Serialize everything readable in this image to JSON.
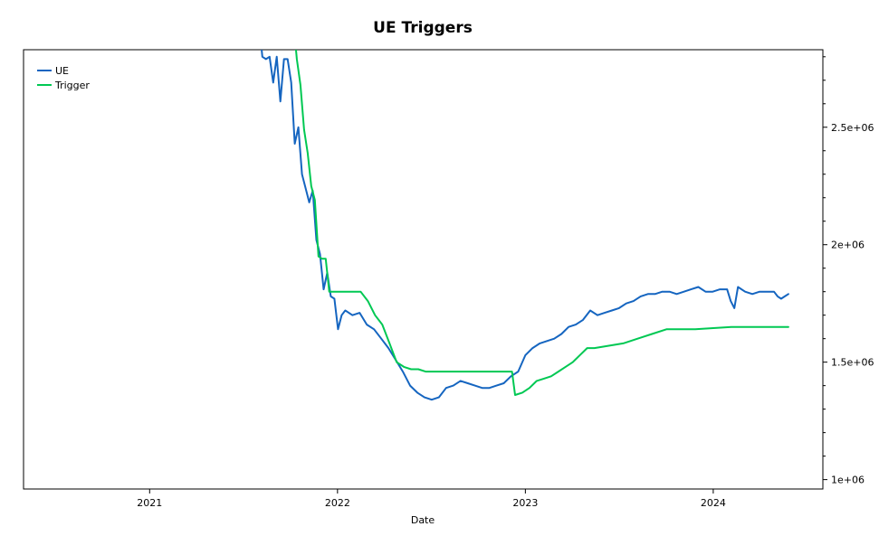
{
  "chart_data": {
    "type": "line",
    "title": "UE Triggers",
    "xlabel": "Date",
    "ylabel": "",
    "x_type": "date",
    "xlim": [
      "2020-05-01",
      "2024-08-01"
    ],
    "ylim": [
      960000,
      2830000
    ],
    "y_axis_side": "right",
    "grid": false,
    "legend_position": "top-left",
    "x_ticks": [
      {
        "value": "2021-01-01",
        "label": "2021"
      },
      {
        "value": "2022-01-01",
        "label": "2022"
      },
      {
        "value": "2023-01-01",
        "label": "2023"
      },
      {
        "value": "2024-01-01",
        "label": "2024"
      }
    ],
    "y_ticks": [
      {
        "value": 1000000,
        "label": "1e+06"
      },
      {
        "value": 1500000,
        "label": "1.5e+06"
      },
      {
        "value": 2000000,
        "label": "2e+06"
      },
      {
        "value": 2500000,
        "label": "2.5e+06"
      }
    ],
    "series": [
      {
        "name": "UE",
        "color": "#1565c0",
        "points": [
          [
            "2021-08-01",
            2960000
          ],
          [
            "2021-08-08",
            2800000
          ],
          [
            "2021-08-15",
            2790000
          ],
          [
            "2021-08-22",
            2800000
          ],
          [
            "2021-08-29",
            2690000
          ],
          [
            "2021-09-05",
            2800000
          ],
          [
            "2021-09-12",
            2610000
          ],
          [
            "2021-09-19",
            2790000
          ],
          [
            "2021-09-26",
            2790000
          ],
          [
            "2021-10-03",
            2690000
          ],
          [
            "2021-10-10",
            2430000
          ],
          [
            "2021-10-17",
            2500000
          ],
          [
            "2021-10-24",
            2300000
          ],
          [
            "2021-10-31",
            2240000
          ],
          [
            "2021-11-07",
            2180000
          ],
          [
            "2021-11-14",
            2230000
          ],
          [
            "2021-11-21",
            2020000
          ],
          [
            "2021-11-28",
            1960000
          ],
          [
            "2021-12-05",
            1810000
          ],
          [
            "2021-12-12",
            1880000
          ],
          [
            "2021-12-19",
            1780000
          ],
          [
            "2021-12-26",
            1770000
          ],
          [
            "2022-01-02",
            1640000
          ],
          [
            "2022-01-09",
            1700000
          ],
          [
            "2022-01-16",
            1720000
          ],
          [
            "2022-01-30",
            1700000
          ],
          [
            "2022-02-13",
            1710000
          ],
          [
            "2022-02-27",
            1660000
          ],
          [
            "2022-03-13",
            1640000
          ],
          [
            "2022-03-27",
            1600000
          ],
          [
            "2022-04-10",
            1560000
          ],
          [
            "2022-04-24",
            1510000
          ],
          [
            "2022-05-08",
            1460000
          ],
          [
            "2022-05-22",
            1400000
          ],
          [
            "2022-06-05",
            1370000
          ],
          [
            "2022-06-19",
            1350000
          ],
          [
            "2022-07-03",
            1340000
          ],
          [
            "2022-07-17",
            1350000
          ],
          [
            "2022-07-31",
            1390000
          ],
          [
            "2022-08-14",
            1400000
          ],
          [
            "2022-08-28",
            1420000
          ],
          [
            "2022-09-11",
            1410000
          ],
          [
            "2022-09-25",
            1400000
          ],
          [
            "2022-10-09",
            1390000
          ],
          [
            "2022-10-23",
            1390000
          ],
          [
            "2022-11-06",
            1400000
          ],
          [
            "2022-11-20",
            1410000
          ],
          [
            "2022-12-04",
            1440000
          ],
          [
            "2022-12-18",
            1460000
          ],
          [
            "2023-01-01",
            1530000
          ],
          [
            "2023-01-15",
            1560000
          ],
          [
            "2023-01-29",
            1580000
          ],
          [
            "2023-02-12",
            1590000
          ],
          [
            "2023-02-26",
            1600000
          ],
          [
            "2023-03-12",
            1620000
          ],
          [
            "2023-03-26",
            1650000
          ],
          [
            "2023-04-09",
            1660000
          ],
          [
            "2023-04-23",
            1680000
          ],
          [
            "2023-05-07",
            1720000
          ],
          [
            "2023-05-21",
            1700000
          ],
          [
            "2023-06-04",
            1710000
          ],
          [
            "2023-06-18",
            1720000
          ],
          [
            "2023-07-02",
            1730000
          ],
          [
            "2023-07-16",
            1750000
          ],
          [
            "2023-07-30",
            1760000
          ],
          [
            "2023-08-13",
            1780000
          ],
          [
            "2023-08-27",
            1790000
          ],
          [
            "2023-09-10",
            1790000
          ],
          [
            "2023-09-24",
            1800000
          ],
          [
            "2023-10-08",
            1800000
          ],
          [
            "2023-10-22",
            1790000
          ],
          [
            "2023-11-05",
            1800000
          ],
          [
            "2023-11-19",
            1810000
          ],
          [
            "2023-12-03",
            1820000
          ],
          [
            "2023-12-17",
            1800000
          ],
          [
            "2023-12-31",
            1800000
          ],
          [
            "2024-01-14",
            1810000
          ],
          [
            "2024-01-28",
            1810000
          ],
          [
            "2024-02-04",
            1760000
          ],
          [
            "2024-02-11",
            1730000
          ],
          [
            "2024-02-18",
            1820000
          ],
          [
            "2024-03-03",
            1800000
          ],
          [
            "2024-03-17",
            1790000
          ],
          [
            "2024-03-31",
            1800000
          ],
          [
            "2024-04-14",
            1800000
          ],
          [
            "2024-04-28",
            1800000
          ],
          [
            "2024-05-05",
            1780000
          ],
          [
            "2024-05-12",
            1770000
          ],
          [
            "2024-05-19",
            1780000
          ],
          [
            "2024-05-26",
            1790000
          ]
        ]
      },
      {
        "name": "Trigger",
        "color": "#00c853",
        "points": [
          [
            "2021-10-01",
            2960000
          ],
          [
            "2021-10-07",
            2960000
          ],
          [
            "2021-10-14",
            2790000
          ],
          [
            "2021-10-21",
            2680000
          ],
          [
            "2021-10-28",
            2490000
          ],
          [
            "2021-11-04",
            2390000
          ],
          [
            "2021-11-11",
            2250000
          ],
          [
            "2021-11-18",
            2190000
          ],
          [
            "2021-11-25",
            1950000
          ],
          [
            "2021-12-02",
            1940000
          ],
          [
            "2021-12-09",
            1940000
          ],
          [
            "2021-12-16",
            1800000
          ],
          [
            "2022-02-15",
            1800000
          ],
          [
            "2022-03-01",
            1760000
          ],
          [
            "2022-03-15",
            1700000
          ],
          [
            "2022-03-29",
            1660000
          ],
          [
            "2022-04-12",
            1580000
          ],
          [
            "2022-04-26",
            1500000
          ],
          [
            "2022-05-10",
            1480000
          ],
          [
            "2022-05-24",
            1470000
          ],
          [
            "2022-06-07",
            1470000
          ],
          [
            "2022-06-21",
            1460000
          ],
          [
            "2022-12-06",
            1460000
          ],
          [
            "2022-12-12",
            1360000
          ],
          [
            "2022-12-26",
            1370000
          ],
          [
            "2023-01-09",
            1390000
          ],
          [
            "2023-01-23",
            1420000
          ],
          [
            "2023-02-06",
            1430000
          ],
          [
            "2023-02-20",
            1440000
          ],
          [
            "2023-03-06",
            1460000
          ],
          [
            "2023-03-20",
            1480000
          ],
          [
            "2023-04-03",
            1500000
          ],
          [
            "2023-04-17",
            1530000
          ],
          [
            "2023-05-01",
            1560000
          ],
          [
            "2023-05-15",
            1560000
          ],
          [
            "2023-06-12",
            1570000
          ],
          [
            "2023-07-10",
            1580000
          ],
          [
            "2023-08-07",
            1600000
          ],
          [
            "2023-09-04",
            1620000
          ],
          [
            "2023-10-02",
            1640000
          ],
          [
            "2023-11-27",
            1640000
          ],
          [
            "2024-02-05",
            1650000
          ],
          [
            "2024-05-26",
            1650000
          ]
        ]
      }
    ]
  }
}
